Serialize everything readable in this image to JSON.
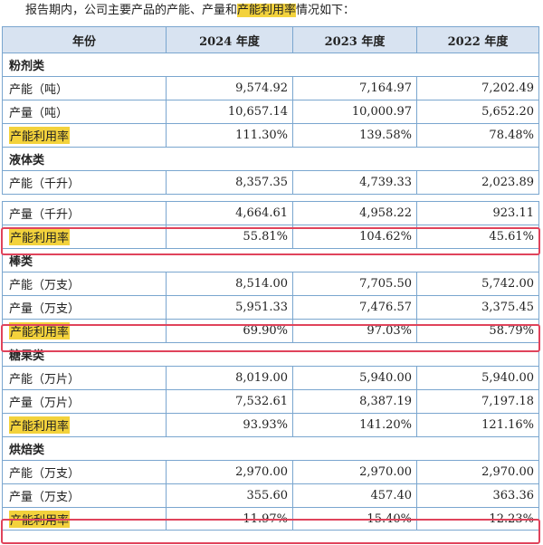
{
  "intro": {
    "prefix": "报告期内，公司主要产品的产能、产量和",
    "highlight": "产能利用率",
    "suffix": "情况如下："
  },
  "header": [
    "年份",
    "2024 年度",
    "2023 年度",
    "2022 年度"
  ],
  "groups": [
    {
      "category": "粉剂类",
      "rows": [
        {
          "label": "产能（吨）",
          "v2024": "9,574.92",
          "v2023": "7,164.97",
          "v2022": "7,202.49"
        },
        {
          "label": "产量（吨）",
          "v2024": "10,657.14",
          "v2023": "10,000.97",
          "v2022": "5,652.20"
        },
        {
          "label": "产能利用率",
          "v2024": "111.30%",
          "v2023": "139.58%",
          "v2022": "78.48%"
        }
      ]
    },
    {
      "category": "液体类",
      "rows": [
        {
          "label": "产能（千升）",
          "v2024": "8,357.35",
          "v2023": "4,739.33",
          "v2022": "2,023.89"
        },
        {
          "label": "产量（千升）",
          "v2024": "4,664.61",
          "v2023": "4,958.22",
          "v2022": "923.11"
        },
        {
          "label": "产能利用率",
          "v2024": "55.81%",
          "v2023": "104.62%",
          "v2022": "45.61%"
        }
      ]
    },
    {
      "category": "棒类",
      "rows": [
        {
          "label": "产能（万支）",
          "v2024": "8,514.00",
          "v2023": "7,705.50",
          "v2022": "5,742.00"
        },
        {
          "label": "产量（万支）",
          "v2024": "5,951.33",
          "v2023": "7,476.57",
          "v2022": "3,375.45"
        },
        {
          "label": "产能利用率",
          "v2024": "69.90%",
          "v2023": "97.03%",
          "v2022": "58.79%"
        }
      ]
    },
    {
      "category": "糖果类",
      "rows": [
        {
          "label": "产能（万片）",
          "v2024": "8,019.00",
          "v2023": "5,940.00",
          "v2022": "5,940.00"
        },
        {
          "label": "产量（万片）",
          "v2024": "7,532.61",
          "v2023": "8,387.19",
          "v2022": "7,197.18"
        },
        {
          "label": "产能利用率",
          "v2024": "93.93%",
          "v2023": "141.20%",
          "v2022": "121.16%"
        }
      ]
    },
    {
      "category": "烘焙类",
      "rows": [
        {
          "label": "产能（万支）",
          "v2024": "2,970.00",
          "v2023": "2,970.00",
          "v2022": "2,970.00"
        },
        {
          "label": "产量（万支）",
          "v2024": "355.60",
          "v2023": "457.40",
          "v2022": "363.36"
        },
        {
          "label": "产能利用率",
          "v2024": "11.97%",
          "v2023": "15.40%",
          "v2022": "12.23%"
        }
      ]
    }
  ]
}
